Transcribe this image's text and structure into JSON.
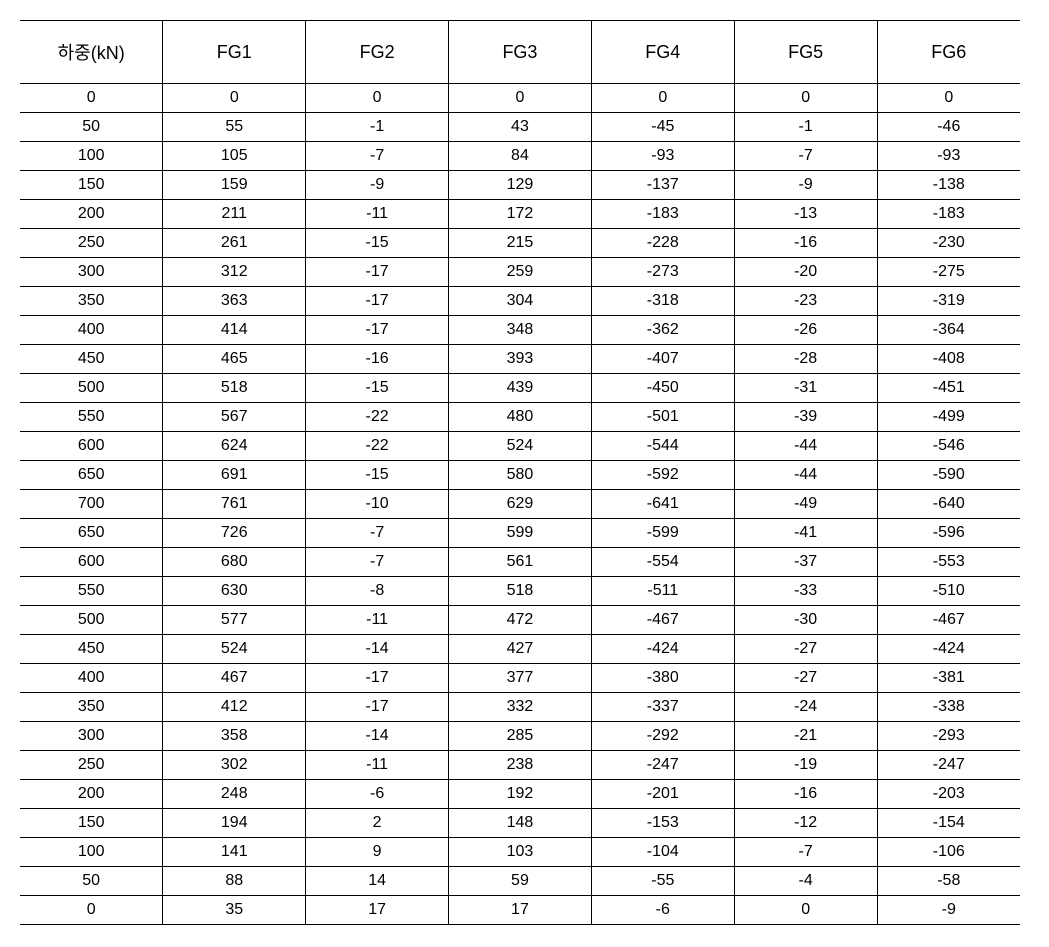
{
  "table": {
    "type": "table",
    "columns": [
      "하중(kN)",
      "FG1",
      "FG2",
      "FG3",
      "FG4",
      "FG5",
      "FG6"
    ],
    "header_fontsize": 18,
    "cell_fontsize": 16,
    "border_color": "#000000",
    "background_color": "#ffffff",
    "text_color": "#000000",
    "column_count": 7,
    "alignment": "center",
    "header_row_height": 58,
    "body_row_height": 28,
    "rows": [
      [
        0,
        0,
        0,
        0,
        0,
        0,
        0
      ],
      [
        50,
        55,
        -1,
        43,
        -45,
        -1,
        -46
      ],
      [
        100,
        105,
        -7,
        84,
        -93,
        -7,
        -93
      ],
      [
        150,
        159,
        -9,
        129,
        -137,
        -9,
        -138
      ],
      [
        200,
        211,
        -11,
        172,
        -183,
        -13,
        -183
      ],
      [
        250,
        261,
        -15,
        215,
        -228,
        -16,
        -230
      ],
      [
        300,
        312,
        -17,
        259,
        -273,
        -20,
        -275
      ],
      [
        350,
        363,
        -17,
        304,
        -318,
        -23,
        -319
      ],
      [
        400,
        414,
        -17,
        348,
        -362,
        -26,
        -364
      ],
      [
        450,
        465,
        -16,
        393,
        -407,
        -28,
        -408
      ],
      [
        500,
        518,
        -15,
        439,
        -450,
        -31,
        -451
      ],
      [
        550,
        567,
        -22,
        480,
        -501,
        -39,
        -499
      ],
      [
        600,
        624,
        -22,
        524,
        -544,
        -44,
        -546
      ],
      [
        650,
        691,
        -15,
        580,
        -592,
        -44,
        -590
      ],
      [
        700,
        761,
        -10,
        629,
        -641,
        -49,
        -640
      ],
      [
        650,
        726,
        -7,
        599,
        -599,
        -41,
        -596
      ],
      [
        600,
        680,
        -7,
        561,
        -554,
        -37,
        -553
      ],
      [
        550,
        630,
        -8,
        518,
        -511,
        -33,
        -510
      ],
      [
        500,
        577,
        -11,
        472,
        -467,
        -30,
        -467
      ],
      [
        450,
        524,
        -14,
        427,
        -424,
        -27,
        -424
      ],
      [
        400,
        467,
        -17,
        377,
        -380,
        -27,
        -381
      ],
      [
        350,
        412,
        -17,
        332,
        -337,
        -24,
        -338
      ],
      [
        300,
        358,
        -14,
        285,
        -292,
        -21,
        -293
      ],
      [
        250,
        302,
        -11,
        238,
        -247,
        -19,
        -247
      ],
      [
        200,
        248,
        -6,
        192,
        -201,
        -16,
        -203
      ],
      [
        150,
        194,
        2,
        148,
        -153,
        -12,
        -154
      ],
      [
        100,
        141,
        9,
        103,
        -104,
        -7,
        -106
      ],
      [
        50,
        88,
        14,
        59,
        -55,
        -4,
        -58
      ],
      [
        0,
        35,
        17,
        17,
        -6,
        0,
        -9
      ]
    ]
  }
}
